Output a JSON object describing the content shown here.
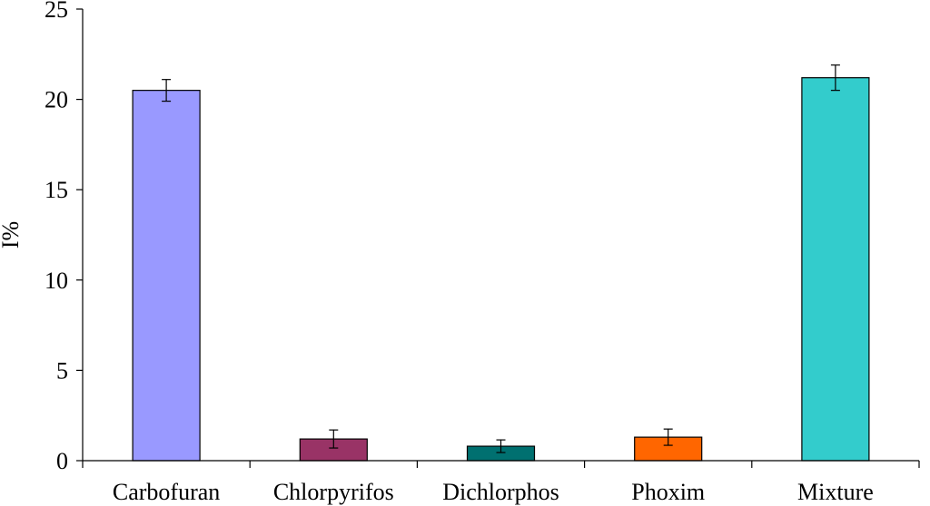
{
  "chart_data": {
    "type": "bar",
    "title": "",
    "xlabel": "",
    "ylabel": "I%",
    "ylim": [
      0,
      25
    ],
    "yticks": [
      0,
      5,
      10,
      15,
      20,
      25
    ],
    "yticks_text": [
      "0",
      "5",
      "10",
      "15",
      "20",
      "25"
    ],
    "grid": false,
    "legend": "none",
    "categories": [
      "Carbofuran",
      "Chlorpyrifos",
      "Dichlorphos",
      "Phoxim",
      "Mixture"
    ],
    "values": [
      20.5,
      1.2,
      0.8,
      1.3,
      21.2
    ],
    "errors": [
      0.6,
      0.5,
      0.35,
      0.45,
      0.7
    ],
    "colors": [
      "#9999ff",
      "#993366",
      "#007070",
      "#ff6600",
      "#33cccc"
    ]
  }
}
